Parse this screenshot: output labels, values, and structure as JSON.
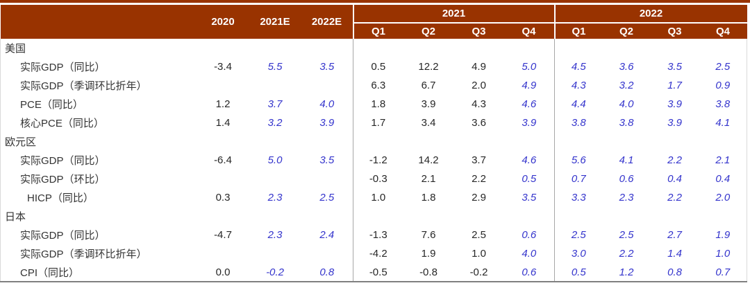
{
  "colors": {
    "header_bg": "#993300",
    "header_text": "#ffffff",
    "actual": "#262626",
    "forecast": "#3333cc",
    "divider": "#a6a6a6",
    "edge": "#d9d9d9",
    "bottom_border": "#808080"
  },
  "chart_data": {
    "type": "table",
    "header": {
      "corner": "",
      "annual": [
        "2020",
        "2021E",
        "2022E"
      ],
      "groups": [
        {
          "year": "2021",
          "quarters": [
            "Q1",
            "Q2",
            "Q3",
            "Q4"
          ]
        },
        {
          "year": "2022",
          "quarters": [
            "Q1",
            "Q2",
            "Q3",
            "Q4"
          ]
        }
      ]
    },
    "forecast_rule": {
      "annual": [
        1,
        2
      ],
      "q2021": [
        3
      ],
      "q2022": [
        0,
        1,
        2,
        3
      ]
    },
    "sections": [
      {
        "name": "美国",
        "rows": [
          {
            "label": "实际GDP（同比）",
            "annual": [
              "-3.4",
              "5.5",
              "3.5"
            ],
            "q2021": [
              "0.5",
              "12.2",
              "4.9",
              "5.0"
            ],
            "q2022": [
              "4.5",
              "3.6",
              "3.5",
              "2.5"
            ]
          },
          {
            "label": "实际GDP（季调环比折年）",
            "annual": [
              "",
              "",
              ""
            ],
            "q2021": [
              "6.3",
              "6.7",
              "2.0",
              "4.9"
            ],
            "q2022": [
              "4.3",
              "3.2",
              "1.7",
              "0.9"
            ]
          },
          {
            "label": "PCE（同比）",
            "annual": [
              "1.2",
              "3.7",
              "4.0"
            ],
            "q2021": [
              "1.8",
              "3.9",
              "4.3",
              "4.6"
            ],
            "q2022": [
              "4.4",
              "4.0",
              "3.9",
              "3.8"
            ]
          },
          {
            "label": "核心PCE（同比）",
            "annual": [
              "1.4",
              "3.2",
              "3.9"
            ],
            "q2021": [
              "1.7",
              "3.4",
              "3.6",
              "3.9"
            ],
            "q2022": [
              "3.8",
              "3.8",
              "3.9",
              "4.1"
            ]
          }
        ]
      },
      {
        "name": "欧元区",
        "rows": [
          {
            "label": "实际GDP（同比）",
            "annual": [
              "-6.4",
              "5.0",
              "3.5"
            ],
            "q2021": [
              "-1.2",
              "14.2",
              "3.7",
              "4.6"
            ],
            "q2022": [
              "5.6",
              "4.1",
              "2.2",
              "2.1"
            ]
          },
          {
            "label": "实际GDP（环比）",
            "annual": [
              "",
              "",
              ""
            ],
            "q2021": [
              "-0.3",
              "2.1",
              "2.2",
              "0.5"
            ],
            "q2022": [
              "0.7",
              "0.6",
              "0.4",
              "0.4"
            ]
          },
          {
            "label": "HICP（同比）",
            "indent": 2,
            "annual": [
              "0.3",
              "2.3",
              "2.5"
            ],
            "q2021": [
              "1.0",
              "1.8",
              "2.9",
              "3.5"
            ],
            "q2022": [
              "3.3",
              "2.3",
              "2.2",
              "2.0"
            ]
          }
        ]
      },
      {
        "name": "日本",
        "rows": [
          {
            "label": "实际GDP（同比）",
            "annual": [
              "-4.7",
              "2.3",
              "2.4"
            ],
            "q2021": [
              "-1.3",
              "7.6",
              "2.5",
              "0.6"
            ],
            "q2022": [
              "2.5",
              "2.5",
              "2.7",
              "1.9"
            ]
          },
          {
            "label": "实际GDP（季调环比折年）",
            "annual": [
              "",
              "",
              ""
            ],
            "q2021": [
              "-4.2",
              "1.9",
              "1.0",
              "4.0"
            ],
            "q2022": [
              "3.0",
              "2.2",
              "1.4",
              "1.0"
            ]
          },
          {
            "label": "CPI（同比）",
            "annual": [
              "0.0",
              "-0.2",
              "0.8"
            ],
            "q2021": [
              "-0.5",
              "-0.8",
              "-0.2",
              "0.6"
            ],
            "q2022": [
              "0.5",
              "1.2",
              "0.8",
              "0.7"
            ]
          }
        ]
      }
    ]
  }
}
